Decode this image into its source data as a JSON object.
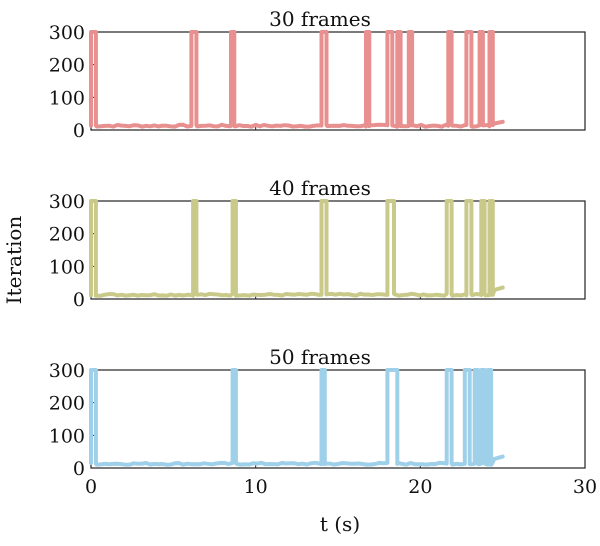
{
  "chart_data": {
    "type": "line",
    "ylabel": "Iteration",
    "xlabel": "t (s)",
    "xlim": [
      0,
      30
    ],
    "ylim": [
      0,
      300
    ],
    "x_ticks": [
      "0",
      "10",
      "20",
      "30"
    ],
    "y_ticks": [
      "0",
      "100",
      "200",
      "300"
    ],
    "grid": false,
    "panels": [
      {
        "title": "30 frames",
        "color": "#e8908f",
        "baseline_end": 25,
        "end_value": 25,
        "spikes": [
          {
            "start": 0.0,
            "end": 0.3
          },
          {
            "start": 6.1,
            "end": 6.4
          },
          {
            "start": 8.5,
            "end": 8.7
          },
          {
            "start": 14.0,
            "end": 14.3
          },
          {
            "start": 16.7,
            "end": 16.9
          },
          {
            "start": 18.0,
            "end": 18.3
          },
          {
            "start": 18.6,
            "end": 18.8
          },
          {
            "start": 19.3,
            "end": 19.5
          },
          {
            "start": 21.7,
            "end": 21.9
          },
          {
            "start": 22.8,
            "end": 23.1
          },
          {
            "start": 23.6,
            "end": 23.8
          },
          {
            "start": 24.2,
            "end": 24.4
          }
        ]
      },
      {
        "title": "40 frames",
        "color": "#c9c98a",
        "baseline_end": 25,
        "end_value": 35,
        "spikes": [
          {
            "start": 0.0,
            "end": 0.3
          },
          {
            "start": 6.2,
            "end": 6.4
          },
          {
            "start": 8.6,
            "end": 8.8
          },
          {
            "start": 14.0,
            "end": 14.3
          },
          {
            "start": 18.0,
            "end": 18.4
          },
          {
            "start": 21.6,
            "end": 21.9
          },
          {
            "start": 22.8,
            "end": 23.1
          },
          {
            "start": 23.7,
            "end": 23.9
          },
          {
            "start": 24.2,
            "end": 24.4
          }
        ]
      },
      {
        "title": "50 frames",
        "color": "#9fd0ea",
        "baseline_end": 25,
        "end_value": 35,
        "spikes": [
          {
            "start": 0.0,
            "end": 0.3
          },
          {
            "start": 8.6,
            "end": 8.8
          },
          {
            "start": 14.0,
            "end": 14.2
          },
          {
            "start": 18.0,
            "end": 18.6
          },
          {
            "start": 21.6,
            "end": 21.9
          },
          {
            "start": 22.7,
            "end": 23.0
          },
          {
            "start": 23.3,
            "end": 23.5
          },
          {
            "start": 23.7,
            "end": 23.9
          },
          {
            "start": 24.1,
            "end": 24.3
          }
        ]
      }
    ]
  }
}
